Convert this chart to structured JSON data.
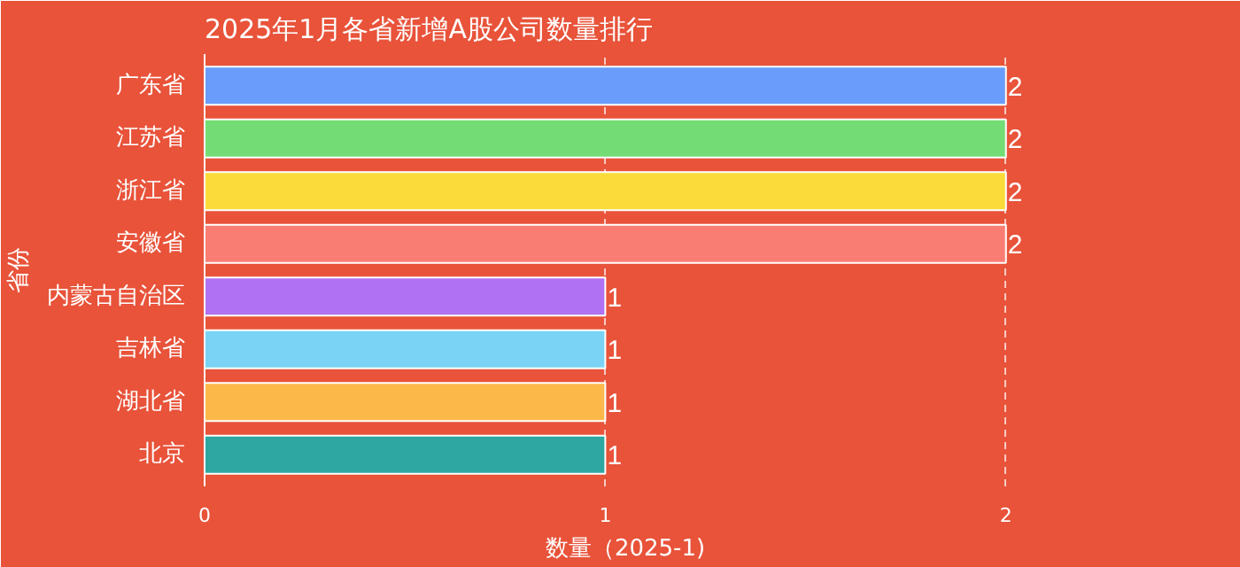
{
  "chart_data": {
    "type": "bar",
    "orientation": "horizontal",
    "title": "2025年1月各省新增A股公司数量排行",
    "xlabel": "数量（2025-1)",
    "ylabel": "省份",
    "categories": [
      "广东省",
      "江苏省",
      "浙江省",
      "安徽省",
      "内蒙古自治区",
      "吉林省",
      "湖北省",
      "北京"
    ],
    "values": [
      2,
      2,
      2,
      2,
      1,
      1,
      1,
      1
    ],
    "colors": [
      "#6a9cfb",
      "#74dc74",
      "#fadb3a",
      "#fa7d74",
      "#b072f2",
      "#7ad3f4",
      "#fdb84a",
      "#2ea6a2"
    ],
    "xlim": [
      0,
      2.1
    ],
    "xticks": [
      0,
      1,
      2
    ],
    "grid": "x",
    "data_labels": true
  }
}
